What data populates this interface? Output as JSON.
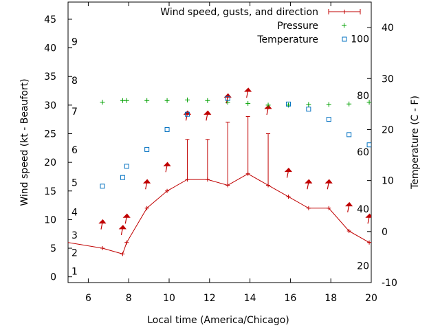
{
  "chart_data": {
    "type": "line",
    "xlabel": "Local time (America/Chicago)",
    "ylabel": "Wind speed (kt - Beaufort)",
    "y2label": "Temperature (C - F)",
    "xlim": [
      5,
      20
    ],
    "ylim": [
      -1,
      48
    ],
    "y2lim": [
      -10,
      45
    ],
    "x_ticks": [
      6,
      8,
      10,
      12,
      14,
      16,
      18,
      20
    ],
    "y_ticks": [
      0,
      5,
      10,
      15,
      20,
      25,
      30,
      35,
      40,
      45
    ],
    "y2_ticks": [
      -10,
      0,
      10,
      20,
      30,
      40
    ],
    "grid": false,
    "legend_position": "top-right",
    "beaufort_scale": [
      {
        "label": "1",
        "y": 1
      },
      {
        "label": "2",
        "y": 4.2
      },
      {
        "label": "3",
        "y": 7.3
      },
      {
        "label": "4",
        "y": 11.3
      },
      {
        "label": "5",
        "y": 16.5
      },
      {
        "label": "6",
        "y": 22.2
      },
      {
        "label": "7",
        "y": 28.9
      },
      {
        "label": "8",
        "y": 34.3
      },
      {
        "label": "9",
        "y": 41.1
      }
    ],
    "fahrenheit_ticks": [
      {
        "label": "20",
        "temp_c": -6.7
      },
      {
        "label": "40",
        "temp_c": 4.4
      },
      {
        "label": "60",
        "temp_c": 15.6
      },
      {
        "label": "80",
        "temp_c": 26.7
      },
      {
        "label": "100",
        "temp_c": 37.8
      }
    ],
    "series": [
      {
        "name": "Wind speed, gusts, and direction",
        "color": "#c00000",
        "marker": "plus-with-errorbar",
        "axis": "y",
        "x": [
          5,
          6.7,
          7.7,
          7.9,
          8.9,
          9.9,
          10.9,
          11.9,
          12.9,
          13.9,
          14.9,
          15.9,
          16.9,
          17.9,
          18.9,
          19.9,
          20
        ],
        "values": [
          6,
          5,
          4,
          6,
          12,
          15,
          17,
          17,
          16,
          18,
          16,
          14,
          12,
          12,
          8,
          6,
          6
        ],
        "gusts": [
          null,
          null,
          null,
          null,
          null,
          null,
          24,
          24,
          27,
          28,
          25,
          null,
          null,
          null,
          null,
          null,
          null
        ],
        "direction_markers": [
          {
            "x": 6.7,
            "y": 9.5
          },
          {
            "x": 7.7,
            "y": 8.5
          },
          {
            "x": 7.9,
            "y": 10.5
          },
          {
            "x": 8.9,
            "y": 16.5
          },
          {
            "x": 9.9,
            "y": 19.5
          },
          {
            "x": 10.9,
            "y": 28.5
          },
          {
            "x": 11.9,
            "y": 28.5
          },
          {
            "x": 12.9,
            "y": 31.5
          },
          {
            "x": 13.9,
            "y": 32.5
          },
          {
            "x": 14.9,
            "y": 29.5
          },
          {
            "x": 15.9,
            "y": 18.5
          },
          {
            "x": 16.9,
            "y": 16.5
          },
          {
            "x": 17.9,
            "y": 16.5
          },
          {
            "x": 18.9,
            "y": 12.5
          },
          {
            "x": 19.9,
            "y": 10.5
          }
        ]
      },
      {
        "name": "Pressure",
        "color": "#00a000",
        "marker": "plus",
        "axis": "y",
        "x": [
          6.7,
          7.7,
          7.9,
          8.9,
          9.9,
          10.9,
          11.9,
          12.9,
          13.9,
          14.9,
          15.9,
          16.9,
          17.9,
          18.9,
          19.9
        ],
        "values": [
          30.5,
          30.8,
          30.8,
          30.8,
          30.8,
          30.9,
          30.8,
          30.5,
          30.3,
          30.0,
          30.0,
          30.1,
          30.1,
          30.2,
          30.5
        ]
      },
      {
        "name": "Temperature",
        "color": "#0070c0",
        "marker": "open-square",
        "axis": "y2",
        "x": [
          6.7,
          7.7,
          7.9,
          8.9,
          9.9,
          10.9,
          12.9,
          15.9,
          16.9,
          17.9,
          18.9,
          19.9
        ],
        "values": [
          8.9,
          10.6,
          12.8,
          16.1,
          20.0,
          23.0,
          26.1,
          25.0,
          24.0,
          22.0,
          19.0,
          17.0
        ]
      }
    ]
  }
}
